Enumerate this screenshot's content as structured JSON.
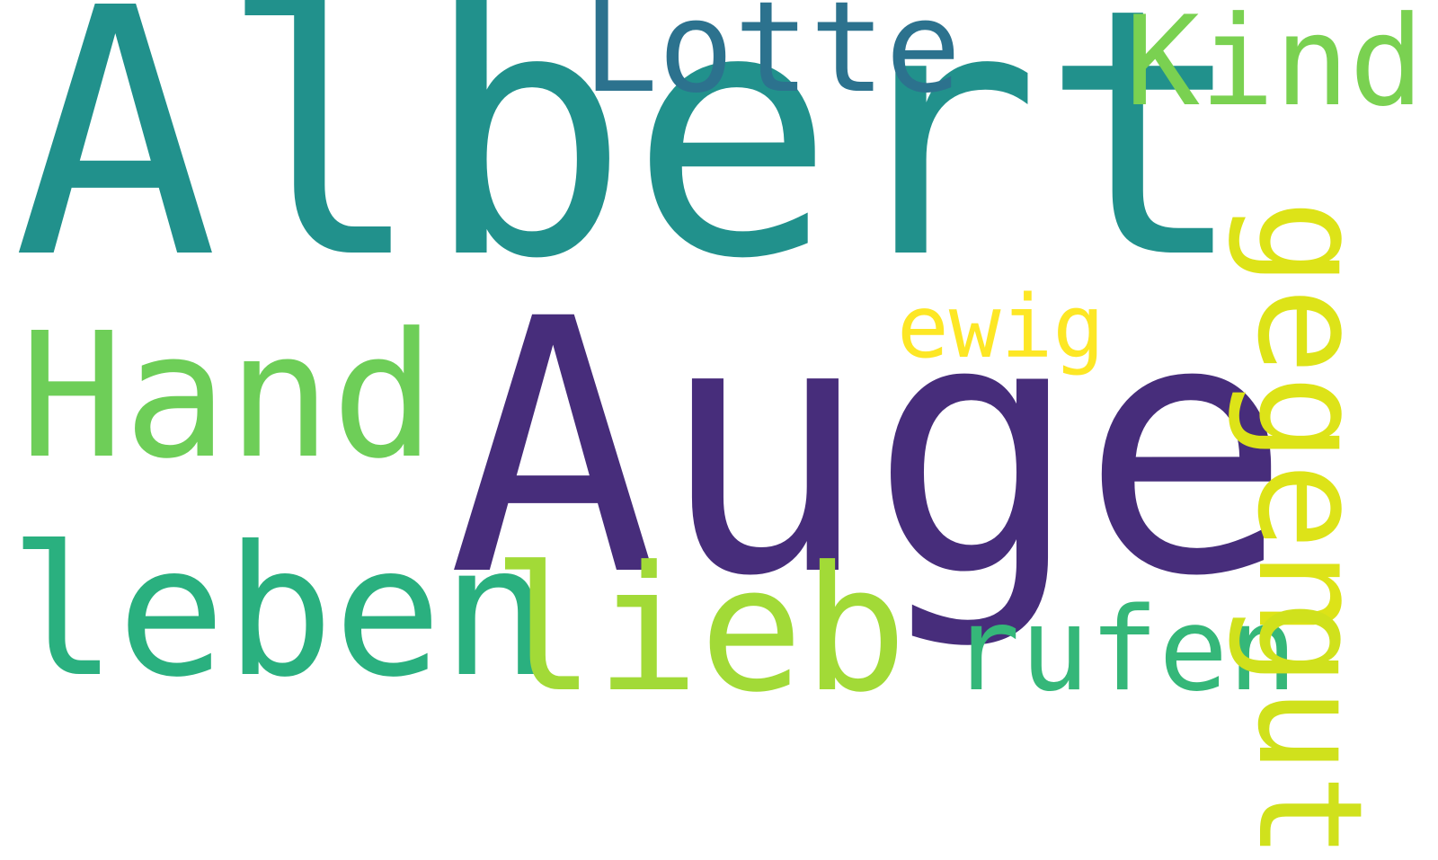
{
  "words": {
    "albert": "Albert",
    "auge": "Auge",
    "lotte": "Lotte",
    "kind": "Kind",
    "hand": "Hand",
    "leben": "leben",
    "lieb": "lieb",
    "rufen": "rufen",
    "ewig": "ewig",
    "gegen": "gegen",
    "gut": "gut"
  },
  "colors": {
    "albert": "#21918c",
    "auge": "#472d7b",
    "lotte": "#2c728e",
    "kind": "#7ad151",
    "hand": "#6ece58",
    "leben": "#2ab07f",
    "lieb": "#a2da37",
    "rufen": "#35b779",
    "ewig": "#fde725",
    "gegen": "#dde318",
    "gut": "#d0e11c"
  }
}
